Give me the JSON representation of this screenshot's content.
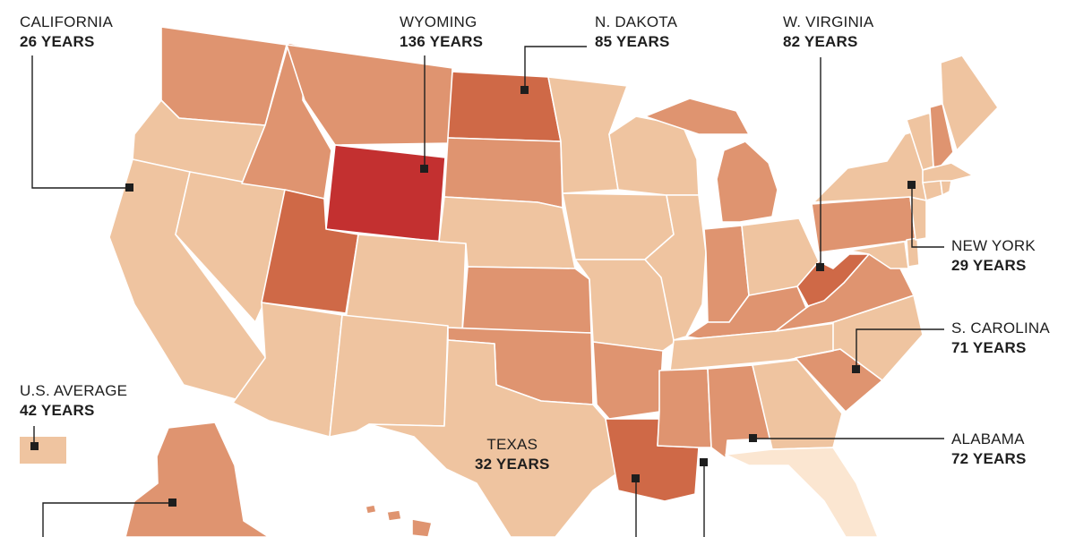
{
  "colors": {
    "light": "#efc4a0",
    "lighter": "#fbe6d1",
    "medium": "#df9470",
    "dark": "#cf6947",
    "darkest": "#c33030",
    "text": "#1e1e1e"
  },
  "callouts": {
    "california": {
      "name": "CALIFORNIA",
      "value": "26 YEARS"
    },
    "wyoming": {
      "name": "WYOMING",
      "value": "136 YEARS"
    },
    "north_dakota": {
      "name": "N. DAKOTA",
      "value": "85 YEARS"
    },
    "west_virginia": {
      "name": "W. VIRGINIA",
      "value": "82 YEARS"
    },
    "new_york": {
      "name": "NEW YORK",
      "value": "29 YEARS"
    },
    "south_carolina": {
      "name": "S. CAROLINA",
      "value": "71 YEARS"
    },
    "alabama": {
      "name": "ALABAMA",
      "value": "72 YEARS"
    },
    "texas": {
      "name": "TEXAS",
      "value": "32 YEARS"
    },
    "us_average": {
      "name": "U.S. AVERAGE",
      "value": "42 YEARS"
    }
  }
}
